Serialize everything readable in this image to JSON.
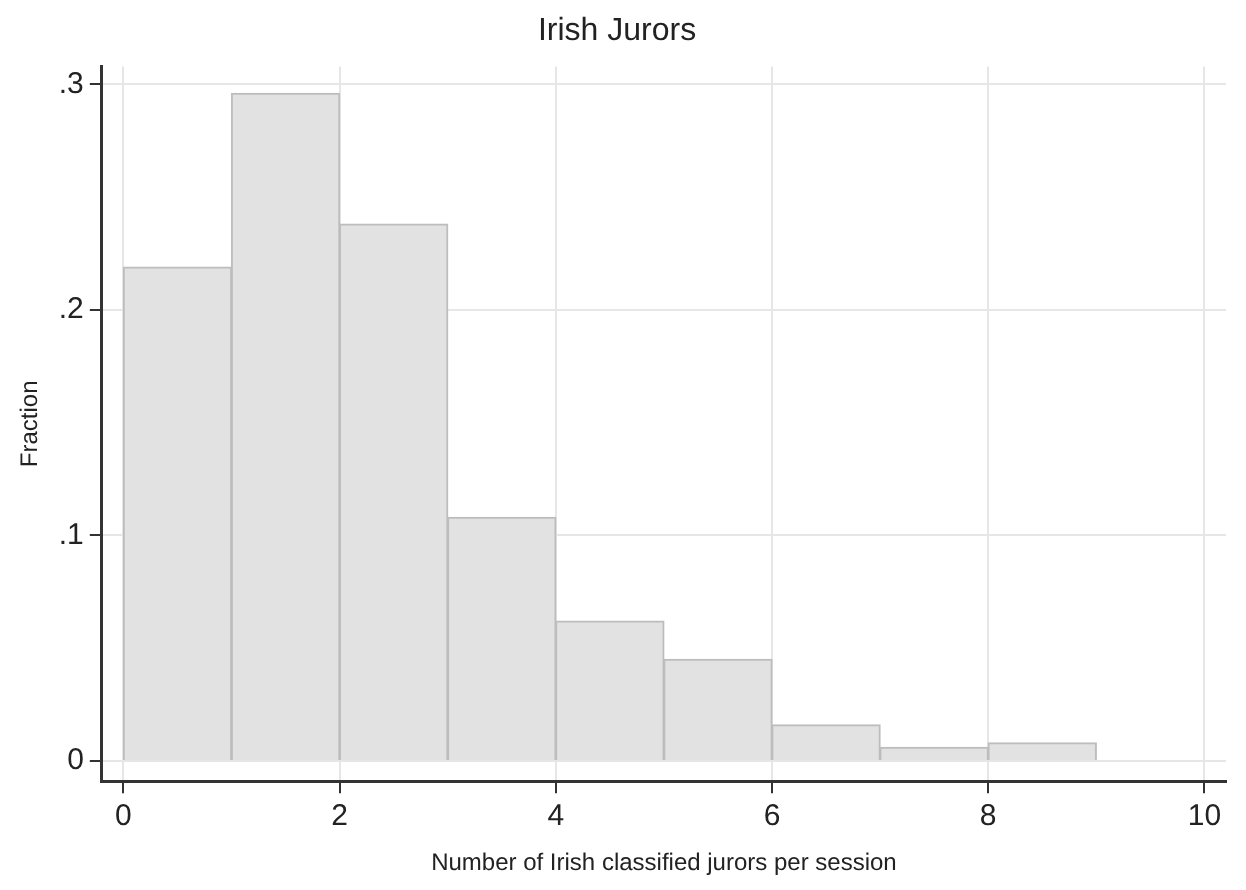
{
  "chart_data": {
    "type": "histogram",
    "title": "Irish Jurors",
    "xlabel": "Number of Irish classified jurors per session",
    "ylabel": "Fraction",
    "bins": [
      0,
      1,
      2,
      3,
      4,
      5,
      6,
      7,
      8,
      9
    ],
    "values": [
      0.219,
      0.296,
      0.238,
      0.108,
      0.062,
      0.045,
      0.016,
      0.006,
      0.008
    ],
    "color": "#e2e2e2",
    "xlim": [
      -0.2,
      10.2
    ],
    "xticks": [
      0,
      2,
      4,
      6,
      8,
      10
    ],
    "ylim": [
      -0.009,
      0.308
    ],
    "yticks": [
      {
        "value": 0,
        "label": "0"
      },
      {
        "value": 0.1,
        "label": ".1"
      },
      {
        "value": 0.2,
        "label": ".2"
      },
      {
        "value": 0.3,
        "label": ".3"
      }
    ],
    "grid": true
  }
}
